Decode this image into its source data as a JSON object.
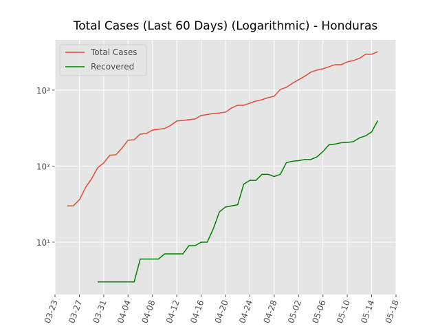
{
  "chart_data": {
    "type": "line",
    "title": "Total Cases (Last 60 Days) (Logarithmic) - Honduras",
    "x": [
      "03-25",
      "03-26",
      "03-27",
      "03-28",
      "03-29",
      "03-30",
      "03-31",
      "04-01",
      "04-02",
      "04-03",
      "04-04",
      "04-05",
      "04-06",
      "04-07",
      "04-08",
      "04-09",
      "04-10",
      "04-11",
      "04-12",
      "04-13",
      "04-14",
      "04-15",
      "04-16",
      "04-17",
      "04-18",
      "04-19",
      "04-20",
      "04-21",
      "04-22",
      "04-23",
      "04-24",
      "04-25",
      "04-26",
      "04-27",
      "04-28",
      "04-29",
      "04-30",
      "05-01",
      "05-02",
      "05-03",
      "05-04",
      "05-05",
      "05-06",
      "05-07",
      "05-08",
      "05-09",
      "05-10",
      "05-11",
      "05-12",
      "05-13",
      "05-14",
      "05-15"
    ],
    "series": [
      {
        "name": "Total Cases",
        "color": "#e24a33",
        "values": [
          30,
          30,
          36,
          52,
          68,
          95,
          110,
          139,
          141,
          172,
          219,
          222,
          264,
          268,
          298,
          305,
          312,
          343,
          392,
          399,
          408,
          417,
          463,
          477,
          492,
          500,
          513,
          582,
          632,
          632,
          673,
          717,
          747,
          795,
          830,
          1020,
          1088,
          1230,
          1366,
          1517,
          1719,
          1830,
          1906,
          2030,
          2160,
          2160,
          2350,
          2450,
          2610,
          2955,
          2955,
          3204
        ]
      },
      {
        "name": "Recovered",
        "color": "#008000",
        "values": [
          null,
          null,
          null,
          null,
          null,
          3,
          3,
          3,
          3,
          3,
          3,
          3,
          6,
          6,
          6,
          6,
          7,
          7,
          7,
          7,
          9,
          9,
          10,
          10,
          15,
          25,
          29,
          30,
          31,
          58,
          65,
          65,
          78,
          78,
          73,
          78,
          111,
          116,
          118,
          122,
          122,
          132,
          155,
          191,
          195,
          203,
          205,
          210,
          235,
          250,
          282,
          396
        ]
      }
    ],
    "xlim": [
      "03-23",
      "05-18"
    ],
    "xticks": [
      "03-23",
      "03-27",
      "03-31",
      "04-04",
      "04-08",
      "04-12",
      "04-16",
      "04-20",
      "04-24",
      "04-28",
      "05-02",
      "05-06",
      "05-10",
      "05-14",
      "05-18"
    ],
    "ylim": [
      2.05,
      4570
    ],
    "log_y": true,
    "yticks": [
      {
        "value": 10,
        "label": "10¹"
      },
      {
        "value": 100,
        "label": "10²"
      },
      {
        "value": 1000,
        "label": "10³"
      }
    ],
    "grid": true,
    "legend": "upper left"
  }
}
